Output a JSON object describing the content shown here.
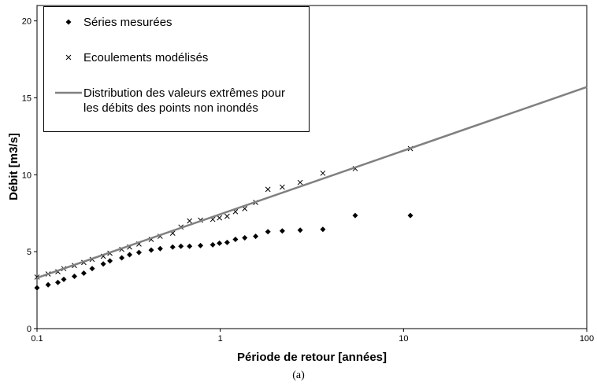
{
  "chart_data": {
    "type": "scatter",
    "x_label": "Période de retour [années]",
    "y_label": "Débit [m3/s]",
    "caption": "(a)",
    "xscale": "log",
    "xlim": [
      0.1,
      100
    ],
    "xticks": [
      0.1,
      1,
      10,
      100
    ],
    "ylim": [
      0,
      21
    ],
    "yticks": [
      0,
      5,
      10,
      15,
      20
    ],
    "grid": false,
    "legend": "upper left",
    "series": [
      {
        "name": "Séries mesurées",
        "marker": "diamond",
        "color": "#000000",
        "x": [
          10.9,
          5.45,
          3.63,
          2.73,
          2.18,
          1.82,
          1.56,
          1.36,
          1.21,
          1.09,
          0.99,
          0.91,
          0.78,
          0.68,
          0.61,
          0.55,
          0.47,
          0.42,
          0.36,
          0.32,
          0.29,
          0.25,
          0.23,
          0.2,
          0.18,
          0.16,
          0.14,
          0.13,
          0.115,
          0.1
        ],
        "values": [
          7.35,
          7.35,
          6.45,
          6.4,
          6.35,
          6.3,
          6.0,
          5.9,
          5.8,
          5.6,
          5.55,
          5.45,
          5.4,
          5.35,
          5.35,
          5.3,
          5.2,
          5.1,
          4.95,
          4.8,
          4.6,
          4.4,
          4.2,
          3.9,
          3.6,
          3.4,
          3.2,
          3.0,
          2.85,
          2.65
        ]
      },
      {
        "name": "Ecoulements modélisés",
        "marker": "x",
        "color": "#000000",
        "x": [
          10.9,
          5.45,
          3.63,
          2.73,
          2.18,
          1.82,
          1.56,
          1.36,
          1.21,
          1.09,
          0.99,
          0.91,
          0.78,
          0.68,
          0.61,
          0.55,
          0.47,
          0.42,
          0.36,
          0.32,
          0.29,
          0.25,
          0.23,
          0.2,
          0.18,
          0.16,
          0.14,
          0.13,
          0.115,
          0.1
        ],
        "values": [
          11.7,
          10.4,
          10.1,
          9.5,
          9.2,
          9.05,
          8.2,
          7.8,
          7.6,
          7.3,
          7.2,
          7.1,
          7.05,
          7.0,
          6.6,
          6.2,
          6.0,
          5.8,
          5.5,
          5.3,
          5.15,
          4.9,
          4.7,
          4.5,
          4.3,
          4.1,
          3.9,
          3.7,
          3.55,
          3.35
        ]
      },
      {
        "name": "Distribution des valeurs extrêmes pour les débits des points non inondés",
        "marker": "line",
        "color": "#808080",
        "x": [
          0.1,
          100
        ],
        "values": [
          3.3,
          15.7
        ]
      }
    ]
  }
}
